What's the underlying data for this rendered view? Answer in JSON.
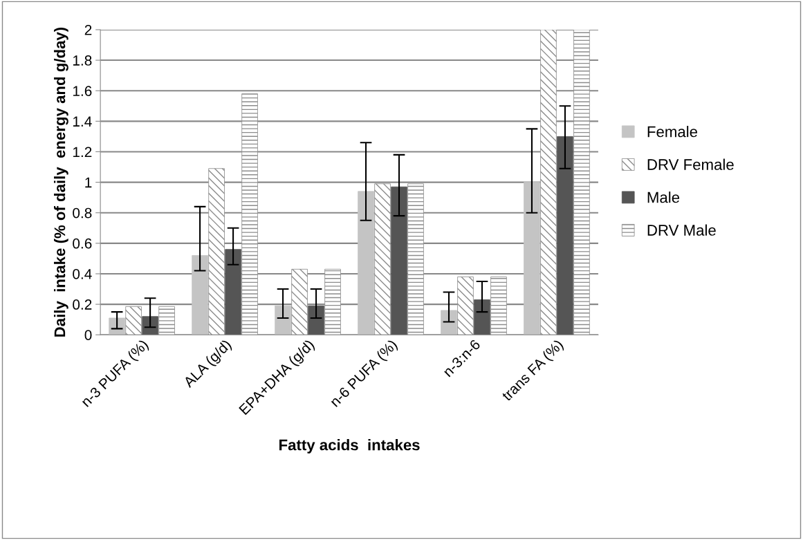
{
  "chart_data": {
    "type": "bar",
    "xlabel": "Fatty acids  intakes",
    "ylabel": "Daily  intake (% of daily  energy and g/day)",
    "categories": [
      "n-3 PUFA (%)",
      "ALA (g/d)",
      "EPA+DHA (g/d)",
      "n-6 PUFA (%)",
      "n-3:n-6",
      "trans FA (%)"
    ],
    "series": [
      {
        "name": "Female",
        "color": "#c4c4c4",
        "values": [
          0.11,
          0.52,
          0.19,
          0.94,
          0.16,
          1.0
        ],
        "errors": [
          [
            0.04,
            0.15
          ],
          [
            0.42,
            0.84
          ],
          [
            0.11,
            0.3
          ],
          [
            0.75,
            1.26
          ],
          [
            0.085,
            0.28
          ],
          [
            0.8,
            1.35
          ]
        ]
      },
      {
        "name": "DRV Female",
        "color": "#8c8c8c",
        "values": [
          0.185,
          1.09,
          0.43,
          0.99,
          0.38,
          2.0
        ]
      },
      {
        "name": "Male",
        "color": "#555555",
        "values": [
          0.12,
          0.56,
          0.19,
          0.97,
          0.23,
          1.3
        ],
        "errors": [
          [
            0.05,
            0.24
          ],
          [
            0.46,
            0.7
          ],
          [
            0.11,
            0.3
          ],
          [
            0.78,
            1.18
          ],
          [
            0.15,
            0.35
          ],
          [
            1.09,
            1.5
          ]
        ]
      },
      {
        "name": "DRV Male",
        "color": "#8c8c8c",
        "values": [
          0.185,
          1.58,
          0.43,
          0.99,
          0.38,
          2.0
        ]
      }
    ],
    "ylim": [
      0,
      2
    ],
    "yticks": [
      0,
      0.2,
      0.4,
      0.6,
      0.8,
      1,
      1.2,
      1.4,
      1.6,
      1.8,
      2
    ],
    "grid": "y",
    "legend": "right"
  }
}
